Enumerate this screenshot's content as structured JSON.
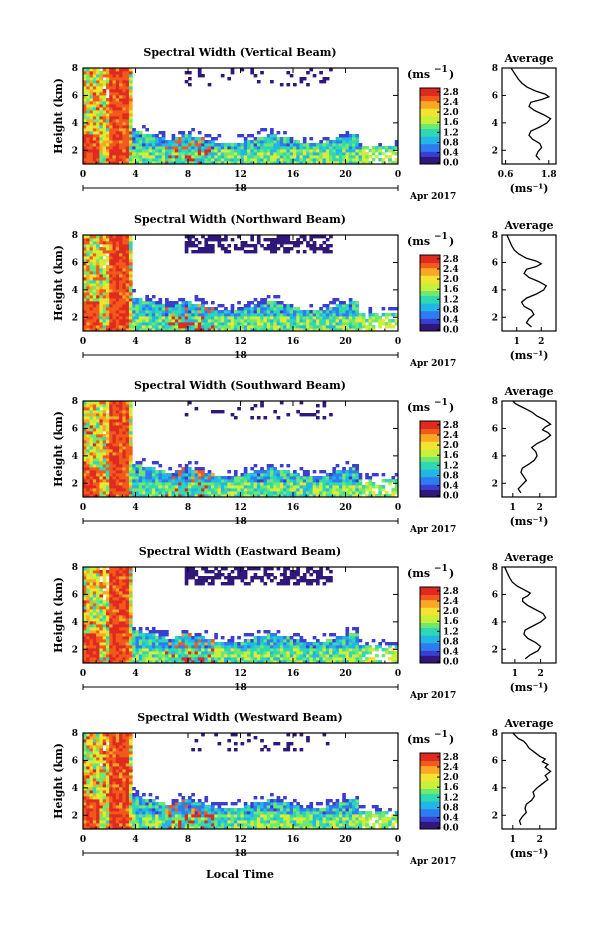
{
  "colors": {
    "colormap": [
      "#30187a",
      "#3b3fd0",
      "#2f7bf0",
      "#22b6e6",
      "#2fd8b4",
      "#6ee86e",
      "#c8f03a",
      "#f4e432",
      "#f9a725",
      "#f25a1c",
      "#e02a20"
    ],
    "line": "#000000",
    "background": "#ffffff"
  },
  "figure": {
    "xlabel": "Local Time",
    "date_day": "18",
    "date_label": "Apr 2017",
    "unit_label": "(ms",
    "unit_sup": "−1",
    "unit_close": ")",
    "avg_title": "Average"
  },
  "chart_data": [
    {
      "type": "heatmap",
      "title": "Spectral Width (Vertical Beam)",
      "ylabel": "Height (km)",
      "x_ticks": [
        "0",
        "4",
        "8",
        "12",
        "16",
        "20",
        "0"
      ],
      "y_ticks": [
        "2",
        "4",
        "6",
        "8"
      ],
      "xlim_hours": [
        0,
        24
      ],
      "ylim_km": [
        1,
        8
      ],
      "colorbar": {
        "ticks": [
          "0.0",
          "0.4",
          "0.8",
          "1.2",
          "1.6",
          "2.0",
          "2.4",
          "2.8"
        ],
        "range": [
          0,
          3.0
        ],
        "unit": "ms^-1"
      },
      "profile": {
        "title": "Average",
        "xlabel": "(ms⁻¹)",
        "x_ticks": [
          "0.6",
          "1.8"
        ],
        "y_ticks": [
          "2",
          "4",
          "6",
          "8"
        ],
        "xlim": [
          0.5,
          2.0
        ],
        "x": [
          1.55,
          1.45,
          1.5,
          1.6,
          1.55,
          1.35,
          1.25,
          1.3,
          1.55,
          1.75,
          1.85,
          1.65,
          1.4,
          1.25,
          1.3,
          1.6,
          1.8,
          1.7,
          1.45,
          1.2,
          1.05,
          0.95,
          0.9,
          0.85,
          0.8,
          0.75
        ],
        "y": [
          1.3,
          1.6,
          1.9,
          2.2,
          2.5,
          2.8,
          3.1,
          3.4,
          3.7,
          4.0,
          4.3,
          4.6,
          4.9,
          5.2,
          5.5,
          5.7,
          5.9,
          6.1,
          6.3,
          6.6,
          6.9,
          7.2,
          7.4,
          7.6,
          7.8,
          8.0
        ]
      }
    },
    {
      "type": "heatmap",
      "title": "Spectral Width (Northward Beam)",
      "ylabel": "Height (km)",
      "x_ticks": [
        "0",
        "4",
        "8",
        "12",
        "16",
        "20",
        "0"
      ],
      "y_ticks": [
        "2",
        "4",
        "6",
        "8"
      ],
      "xlim_hours": [
        0,
        24
      ],
      "ylim_km": [
        1,
        8
      ],
      "colorbar": {
        "ticks": [
          "0.0",
          "0.4",
          "0.8",
          "1.2",
          "1.6",
          "2.0",
          "2.4",
          "2.8"
        ],
        "range": [
          0,
          3.0
        ],
        "unit": "ms^-1"
      },
      "profile": {
        "title": "Average",
        "xlabel": "(ms⁻¹)",
        "x_ticks": [
          "1",
          "2"
        ],
        "y_ticks": [
          "2",
          "4",
          "6",
          "8"
        ],
        "xlim": [
          0.4,
          2.6
        ],
        "x": [
          1.6,
          1.4,
          1.5,
          1.7,
          1.6,
          1.3,
          1.2,
          1.4,
          1.8,
          2.1,
          2.2,
          1.9,
          1.5,
          1.3,
          1.4,
          1.8,
          2.0,
          1.8,
          1.4,
          1.1,
          0.9,
          0.8,
          0.75,
          0.7,
          0.65,
          0.6
        ],
        "y": [
          1.3,
          1.6,
          1.9,
          2.2,
          2.5,
          2.8,
          3.1,
          3.4,
          3.7,
          4.0,
          4.3,
          4.6,
          4.9,
          5.2,
          5.5,
          5.7,
          5.9,
          6.1,
          6.3,
          6.6,
          6.9,
          7.2,
          7.4,
          7.6,
          7.8,
          8.0
        ]
      }
    },
    {
      "type": "heatmap",
      "title": "Spectral Width (Southward Beam)",
      "ylabel": "Height (km)",
      "x_ticks": [
        "0",
        "4",
        "8",
        "12",
        "16",
        "20",
        "0"
      ],
      "y_ticks": [
        "2",
        "4",
        "6",
        "8"
      ],
      "xlim_hours": [
        0,
        24
      ],
      "ylim_km": [
        1,
        8
      ],
      "colorbar": {
        "ticks": [
          "0.0",
          "0.4",
          "0.8",
          "1.2",
          "1.6",
          "2.0",
          "2.4",
          "2.8"
        ],
        "range": [
          0,
          3.0
        ],
        "unit": "ms^-1"
      },
      "profile": {
        "title": "Average",
        "xlabel": "(ms⁻¹)",
        "x_ticks": [
          "1",
          "2"
        ],
        "y_ticks": [
          "2",
          "4",
          "6",
          "8"
        ],
        "xlim": [
          0.6,
          2.6
        ],
        "x": [
          1.3,
          1.2,
          1.35,
          1.5,
          1.4,
          1.3,
          1.35,
          1.6,
          1.8,
          1.9,
          1.85,
          1.7,
          1.9,
          2.2,
          2.4,
          2.3,
          2.1,
          2.2,
          2.4,
          2.2,
          1.9,
          1.7,
          1.5,
          1.3,
          1.1,
          1.0
        ],
        "y": [
          1.3,
          1.6,
          1.9,
          2.2,
          2.5,
          2.8,
          3.1,
          3.4,
          3.7,
          4.0,
          4.3,
          4.6,
          4.9,
          5.2,
          5.5,
          5.7,
          5.9,
          6.1,
          6.3,
          6.6,
          6.9,
          7.2,
          7.4,
          7.6,
          7.8,
          8.0
        ]
      }
    },
    {
      "type": "heatmap",
      "title": "Spectral Width (Eastward Beam)",
      "ylabel": "Height (km)",
      "x_ticks": [
        "0",
        "4",
        "8",
        "12",
        "16",
        "20",
        "0"
      ],
      "y_ticks": [
        "2",
        "4",
        "6",
        "8"
      ],
      "xlim_hours": [
        0,
        24
      ],
      "ylim_km": [
        1,
        8
      ],
      "colorbar": {
        "ticks": [
          "0.0",
          "0.4",
          "0.8",
          "1.2",
          "1.6",
          "2.0",
          "2.4",
          "2.8"
        ],
        "range": [
          0,
          3.0
        ],
        "unit": "ms^-1"
      },
      "profile": {
        "title": "Average",
        "xlabel": "(ms⁻¹)",
        "x_ticks": [
          "1",
          "2"
        ],
        "y_ticks": [
          "2",
          "4",
          "6",
          "8"
        ],
        "xlim": [
          0.5,
          2.6
        ],
        "x": [
          1.4,
          1.6,
          1.9,
          2.0,
          1.8,
          1.5,
          1.35,
          1.4,
          1.7,
          2.0,
          2.2,
          2.1,
          1.8,
          1.5,
          1.3,
          1.3,
          1.5,
          1.6,
          1.4,
          1.1,
          0.9,
          0.8,
          0.75,
          0.7,
          0.65,
          0.6
        ],
        "y": [
          1.3,
          1.6,
          1.9,
          2.2,
          2.5,
          2.8,
          3.1,
          3.4,
          3.7,
          4.0,
          4.3,
          4.6,
          4.9,
          5.2,
          5.5,
          5.7,
          5.9,
          6.1,
          6.3,
          6.6,
          6.9,
          7.2,
          7.4,
          7.6,
          7.8,
          8.0
        ]
      }
    },
    {
      "type": "heatmap",
      "title": "Spectral Width (Westward Beam)",
      "ylabel": "Height (km)",
      "x_ticks": [
        "0",
        "4",
        "8",
        "12",
        "16",
        "20",
        "0"
      ],
      "y_ticks": [
        "2",
        "4",
        "6",
        "8"
      ],
      "xlim_hours": [
        0,
        24
      ],
      "ylim_km": [
        1,
        8
      ],
      "colorbar": {
        "ticks": [
          "0.0",
          "0.4",
          "0.8",
          "1.2",
          "1.6",
          "2.0",
          "2.4",
          "2.8"
        ],
        "range": [
          0,
          3.0
        ],
        "unit": "ms^-1"
      },
      "profile": {
        "title": "Average",
        "xlabel": "(ms⁻¹)",
        "x_ticks": [
          "1",
          "2"
        ],
        "y_ticks": [
          "2",
          "4",
          "6",
          "8"
        ],
        "xlim": [
          0.6,
          2.6
        ],
        "x": [
          1.3,
          1.25,
          1.35,
          1.5,
          1.45,
          1.5,
          1.7,
          1.8,
          1.75,
          1.9,
          2.1,
          2.3,
          2.2,
          2.4,
          2.2,
          2.3,
          2.1,
          2.2,
          2.0,
          1.8,
          1.6,
          1.5,
          1.4,
          1.2,
          1.1,
          1.0
        ],
        "y": [
          1.3,
          1.6,
          1.9,
          2.2,
          2.5,
          2.8,
          3.1,
          3.4,
          3.7,
          4.0,
          4.3,
          4.6,
          4.9,
          5.2,
          5.5,
          5.7,
          5.9,
          6.1,
          6.3,
          6.6,
          6.9,
          7.2,
          7.4,
          7.6,
          7.8,
          8.0
        ]
      }
    }
  ]
}
